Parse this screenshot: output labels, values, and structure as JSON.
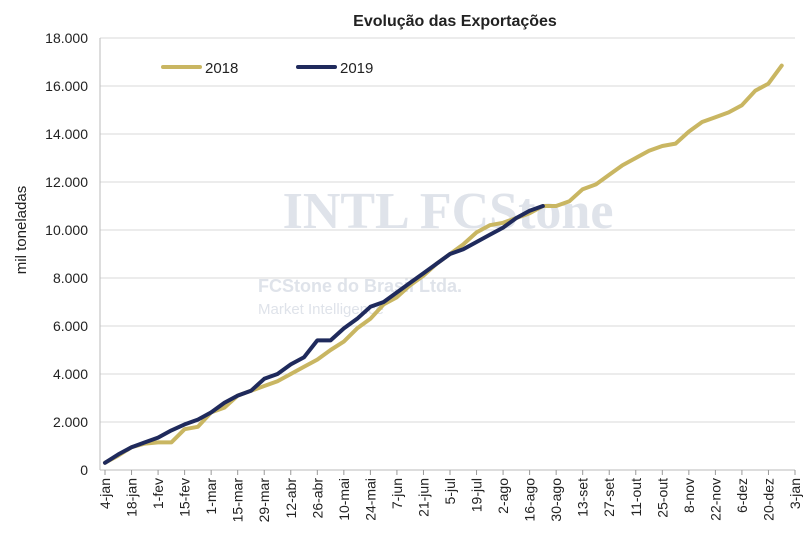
{
  "chart_data": {
    "type": "line",
    "title": "Evolução das Exportações",
    "y_label": "mil toneladas",
    "watermark": [
      "INTL FCStone",
      "FCStone do Brasil Ltda.",
      "Market Intelligence"
    ],
    "categories": [
      "4-jan",
      null,
      "18-jan",
      null,
      "1-fev",
      null,
      "15-fev",
      null,
      "1-mar",
      null,
      "15-mar",
      null,
      "29-mar",
      null,
      "12-abr",
      null,
      "26-abr",
      null,
      "10-mai",
      null,
      "24-mai",
      null,
      "7-jun",
      null,
      "21-jun",
      null,
      "5-jul",
      null,
      "19-jul",
      null,
      "2-ago",
      null,
      "16-ago",
      null,
      "30-ago",
      null,
      "13-set",
      null,
      "27-set",
      null,
      "11-out",
      null,
      "25-out",
      null,
      "8-nov",
      null,
      "22-nov",
      null,
      "6-dez",
      null,
      "20-dez",
      null,
      "3-jan"
    ],
    "series": [
      {
        "name": "2018",
        "color": "#c9b662",
        "values": [
          300,
          600,
          950,
          1100,
          1150,
          1150,
          1700,
          1800,
          2400,
          2600,
          3100,
          3300,
          3500,
          3700,
          4000,
          4300,
          4600,
          5000,
          5350,
          5900,
          6300,
          6900,
          7200,
          7700,
          8100,
          8600,
          9000,
          9400,
          9900,
          10200,
          10300,
          10500,
          10700,
          11000,
          11000,
          11200,
          11700,
          11900,
          12300,
          12700,
          13000,
          13300,
          13500,
          13600,
          14100,
          14500,
          14700,
          14900,
          15200,
          15800,
          16100,
          16850,
          null
        ]
      },
      {
        "name": "2019",
        "color": "#1f2a5c",
        "values": [
          300,
          650,
          950,
          1150,
          1350,
          1650,
          1900,
          2100,
          2400,
          2800,
          3100,
          3300,
          3800,
          4000,
          4400,
          4700,
          5400,
          5400,
          5900,
          6300,
          6800,
          7000,
          7400,
          7800,
          8200,
          8600,
          9000,
          9200,
          9500,
          9800,
          10100,
          10500,
          10800,
          11000,
          null,
          null,
          null,
          null,
          null,
          null,
          null,
          null,
          null,
          null,
          null,
          null,
          null,
          null,
          null,
          null,
          null,
          null,
          null
        ]
      }
    ],
    "ylim": [
      0,
      18000
    ],
    "yticks": [
      0,
      {
        "value": 2000,
        "label": "2.000"
      },
      {
        "value": 4000,
        "label": "4.000"
      },
      {
        "value": 6000,
        "label": "6.000"
      },
      {
        "value": 8000,
        "label": "8.000"
      },
      {
        "value": 10000,
        "label": "10.000"
      },
      {
        "value": 12000,
        "label": "12.000"
      },
      {
        "value": 14000,
        "label": "14.000"
      },
      {
        "value": 16000,
        "label": "16.000"
      },
      {
        "value": 18000,
        "label": "18.000"
      }
    ],
    "grid": true,
    "legend": "top-left"
  }
}
